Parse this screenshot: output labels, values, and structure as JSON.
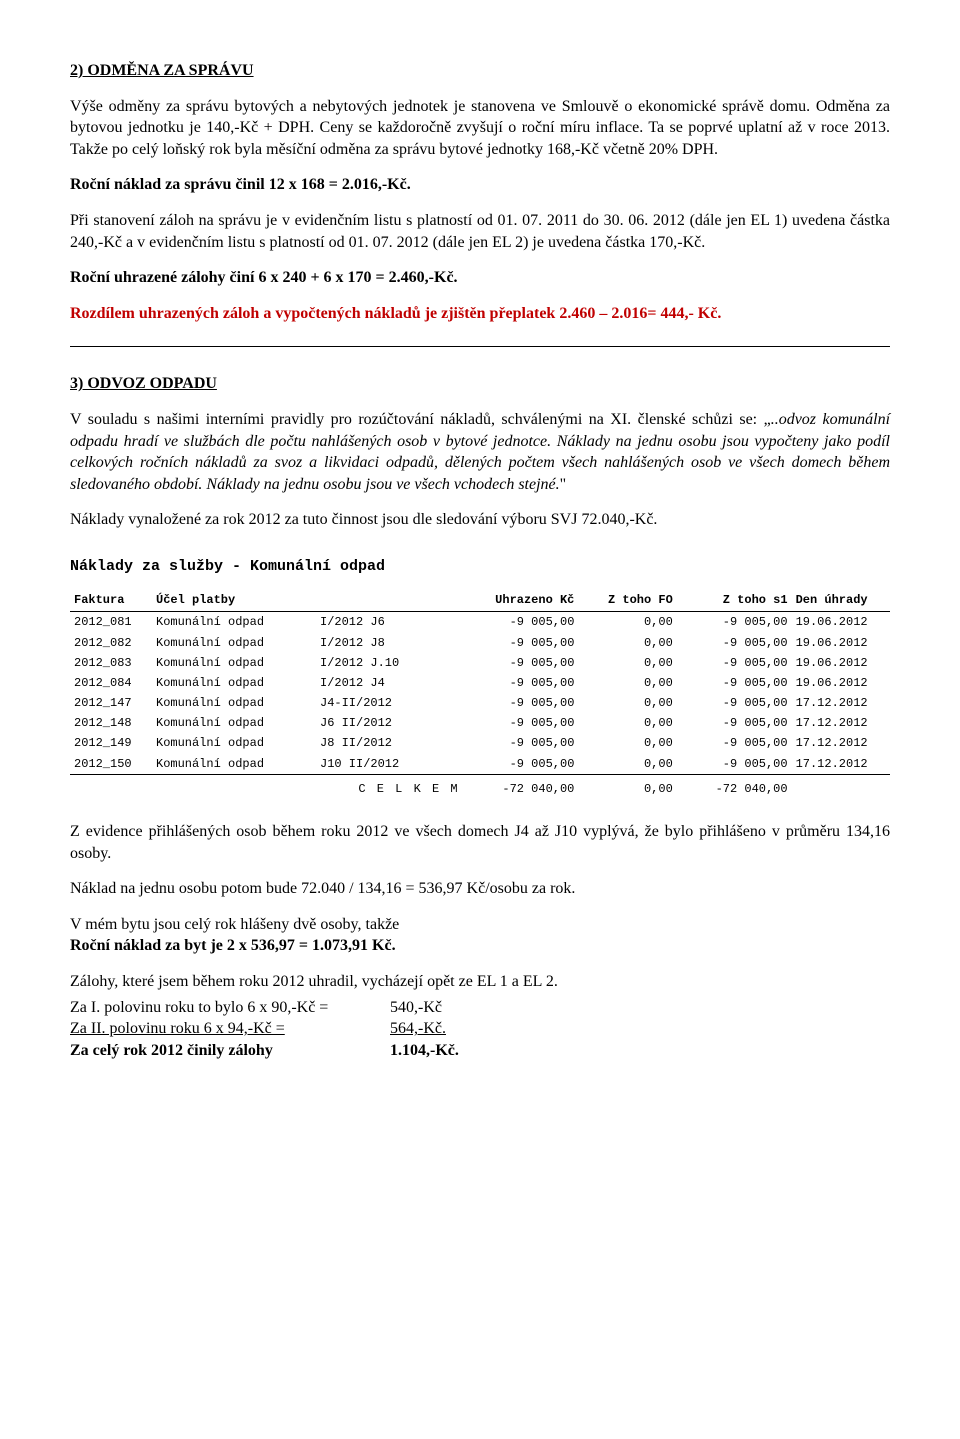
{
  "sec2": {
    "title": "2) ODMĚNA ZA SPRÁVU",
    "p1": "Výše odměny za správu bytových a nebytových jednotek je stanovena ve Smlouvě o ekonomické správě domu. Odměna za bytovou jednotku je 140,-Kč + DPH. Ceny se každoročně zvyšují o roční míru inflace. Ta se poprvé uplatní až v roce 2013. Takže po celý loňský rok byla měsíční odměna za správu bytové jednotky 168,-Kč včetně 20% DPH.",
    "p2": "Roční náklad za správu činil 12 x 168 = 2.016,-Kč.",
    "p3": "Při stanovení záloh na správu je v evidenčním listu s platností od 01. 07. 2011 do 30. 06. 2012 (dále jen EL 1) uvedena částka 240,-Kč a v evidenčním listu s platností od 01. 07. 2012 (dále jen EL 2) je uvedena částka 170,-Kč.",
    "p4": "Roční uhrazené zálohy činí 6 x 240 + 6 x 170 = 2.460,-Kč.",
    "p5": "Rozdílem uhrazených záloh a vypočtených nákladů je zjištěn přeplatek 2.460 – 2.016= 444,- Kč."
  },
  "sec3": {
    "title": "3) ODVOZ ODPADU",
    "p1a": "V souladu s našimi interními pravidly pro rozúčtování nákladů, schválenými na XI. členské schůzi se: „",
    "p1i": "..odvoz komunální odpadu hradí ve službách dle počtu nahlášených osob v bytové jednotce. Náklady na jednu osobu jsou vypočteny jako podíl celkových ročních nákladů za svoz a likvidaci odpadů, dělených počtem všech nahlášených osob ve všech domech během sledovaného období. Náklady na jednu osobu jsou ve všech vchodech stejné.",
    "p1b": "\"",
    "p2": "Náklady vynaložené za rok 2012 za tuto činnost jsou dle sledování výboru SVJ 72.040,-Kč.",
    "tableTitle": "Náklady za služby - Komunální odpad",
    "headers": {
      "faktura": "Faktura",
      "ucel": "Účel platby",
      "pozn": "",
      "uhrazeno": "Uhrazeno Kč",
      "fo": "Z toho FO",
      "s1": "Z toho s1",
      "den": "Den úhrady"
    },
    "rows": [
      {
        "faktura": "2012_081",
        "ucel": "Komunální odpad",
        "pozn": "I/2012 J6",
        "uhrazeno": "-9 005,00",
        "fo": "0,00",
        "s1": "-9 005,00",
        "den": "19.06.2012"
      },
      {
        "faktura": "2012_082",
        "ucel": "Komunální odpad",
        "pozn": "I/2012 J8",
        "uhrazeno": "-9 005,00",
        "fo": "0,00",
        "s1": "-9 005,00",
        "den": "19.06.2012"
      },
      {
        "faktura": "2012_083",
        "ucel": "Komunální odpad",
        "pozn": "I/2012 J.10",
        "uhrazeno": "-9 005,00",
        "fo": "0,00",
        "s1": "-9 005,00",
        "den": "19.06.2012"
      },
      {
        "faktura": "2012_084",
        "ucel": "Komunální odpad",
        "pozn": "I/2012 J4",
        "uhrazeno": "-9 005,00",
        "fo": "0,00",
        "s1": "-9 005,00",
        "den": "19.06.2012"
      },
      {
        "faktura": "2012_147",
        "ucel": "Komunální odpad",
        "pozn": "J4-II/2012",
        "uhrazeno": "-9 005,00",
        "fo": "0,00",
        "s1": "-9 005,00",
        "den": "17.12.2012"
      },
      {
        "faktura": "2012_148",
        "ucel": "Komunální odpad",
        "pozn": "J6 II/2012",
        "uhrazeno": "-9 005,00",
        "fo": "0,00",
        "s1": "-9 005,00",
        "den": "17.12.2012"
      },
      {
        "faktura": "2012_149",
        "ucel": "Komunální odpad",
        "pozn": "J8 II/2012",
        "uhrazeno": "-9 005,00",
        "fo": "0,00",
        "s1": "-9 005,00",
        "den": "17.12.2012"
      },
      {
        "faktura": "2012_150",
        "ucel": "Komunální odpad",
        "pozn": "J10 II/2012",
        "uhrazeno": "-9 005,00",
        "fo": "0,00",
        "s1": "-9 005,00",
        "den": "17.12.2012"
      }
    ],
    "totals": {
      "label": "C E L K E M",
      "uhrazeno": "-72 040,00",
      "fo": "0,00",
      "s1": "-72 040,00"
    },
    "p3": "Z evidence přihlášených osob během roku 2012 ve všech domech J4 až J10 vyplývá, že bylo přihlášeno v průměru 134,16 osoby.",
    "p4": "Náklad na jednu osobu potom bude 72.040 / 134,16 = 536,97 Kč/osobu za rok.",
    "p5a": "V mém bytu jsou celý rok hlášeny dvě osoby, takže",
    "p5b": "Roční náklad za byt je 2 x 536,97 = 1.073,91 Kč.",
    "p6": "Zálohy, které jsem během roku 2012 uhradil, vycházejí opět ze EL 1 a EL 2.",
    "row1l": "Za I. polovinu roku to bylo 6 x 90,-Kč =",
    "row1r": "540,-Kč",
    "row2l": "Za II. polovinu roku 6 x 94,-Kč =",
    "row2r": "564,-Kč.",
    "row3l": "Za celý rok 2012 činily zálohy",
    "row3r": "1.104,-Kč."
  }
}
